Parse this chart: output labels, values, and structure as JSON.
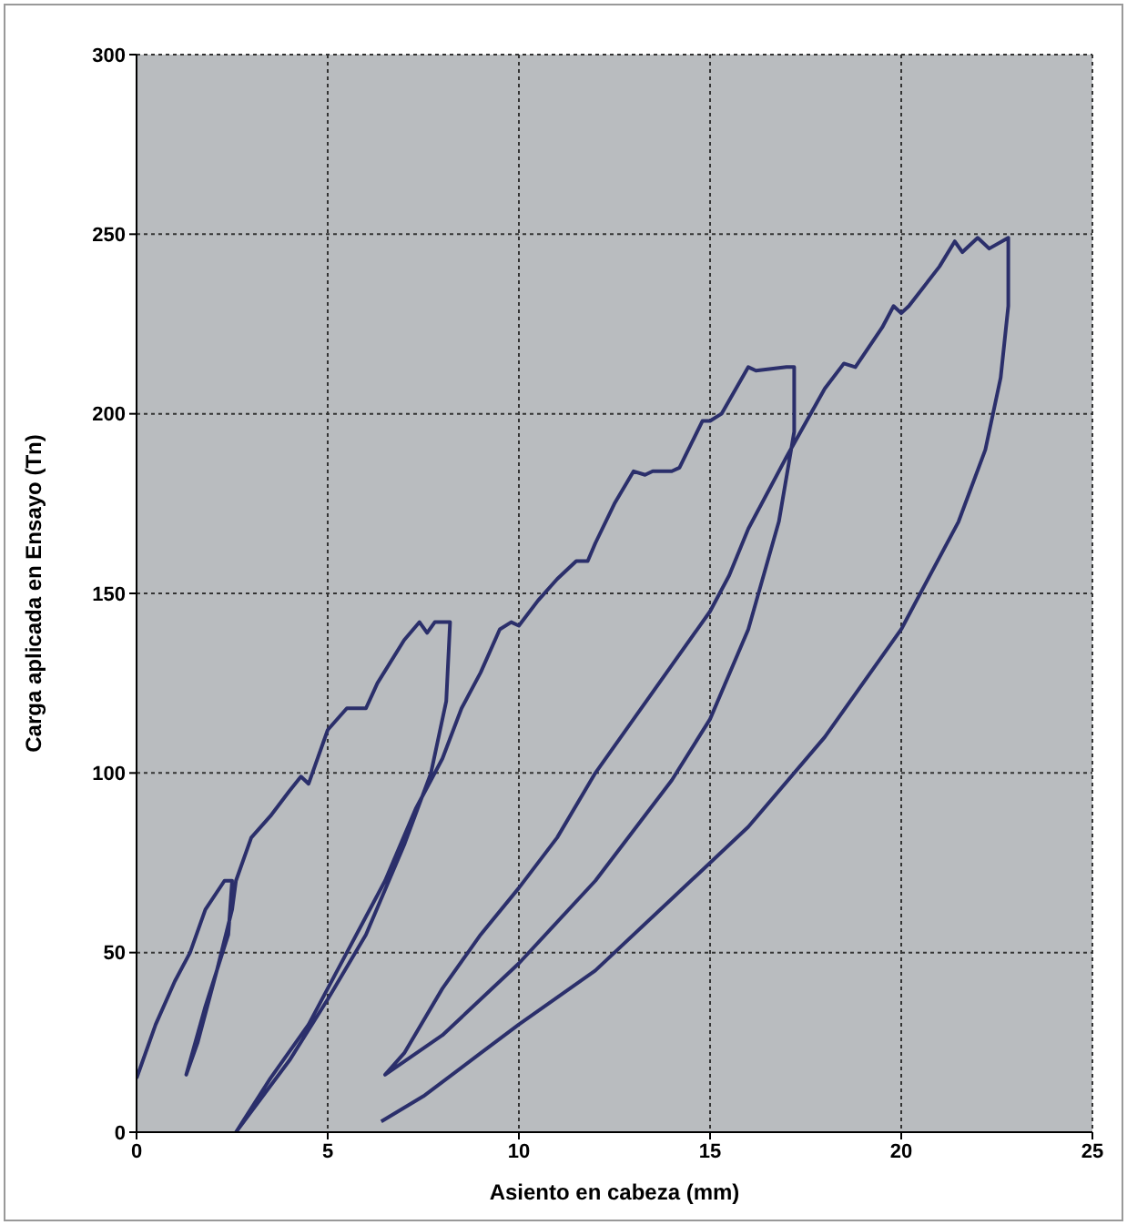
{
  "chart_data": {
    "type": "line",
    "xlabel": "Asiento en cabeza (mm)",
    "ylabel": "Carga aplicada en Ensayo (Tn)",
    "xlim": [
      0,
      25
    ],
    "xticks": [
      0,
      5,
      10,
      15,
      20,
      25
    ],
    "ylim": [
      0,
      300
    ],
    "yticks": [
      0,
      50,
      100,
      150,
      200,
      250,
      300
    ],
    "grid": true,
    "marker": "none",
    "line_style": "solid",
    "legend": false,
    "series": [
      {
        "color": "#2b2f6b",
        "x": [
          0,
          0.5,
          1,
          1.4,
          1.8,
          2.3,
          2.5,
          2.4,
          1.8,
          1.3,
          1.6,
          2.1,
          2.5,
          2.6,
          3,
          3.5,
          4,
          4.3,
          4.5,
          5,
          5.5,
          6,
          6.3,
          7,
          7.4,
          7.6,
          7.8,
          8.2,
          8.1,
          7.7,
          7,
          6,
          5,
          4,
          2.6,
          3.5,
          4.5,
          5.5,
          6.5,
          7.3,
          7.7,
          8,
          8.5,
          9,
          9.5,
          9.8,
          10,
          10.5,
          11,
          11.5,
          11.8,
          12,
          12.5,
          13,
          13.3,
          13.5,
          14,
          14.2,
          14.8,
          15,
          15.3,
          16,
          16.2,
          17,
          17.2,
          17.2,
          16.8,
          16,
          15,
          14,
          12,
          10,
          8,
          6.5,
          7,
          8,
          9,
          10,
          11,
          12,
          13,
          14,
          15,
          15.5,
          16,
          17,
          18,
          18.5,
          18.8,
          19.5,
          19.8,
          20,
          20.2,
          21,
          21.4,
          21.6,
          22,
          22.3,
          22.8,
          22.8,
          22.6,
          22.2,
          21.5,
          20,
          18,
          16,
          14,
          12,
          10,
          9,
          7.5,
          6.4
        ],
        "values": [
          15,
          30,
          42,
          50,
          62,
          70,
          70,
          55,
          35,
          16,
          25,
          45,
          62,
          70,
          82,
          88,
          95,
          99,
          97,
          112,
          118,
          118,
          125,
          137,
          142,
          139,
          142,
          142,
          120,
          100,
          80,
          55,
          37,
          20,
          0,
          15,
          30,
          50,
          70,
          90,
          98,
          104,
          118,
          128,
          140,
          142,
          141,
          148,
          154,
          159,
          159,
          164,
          175,
          184,
          183,
          184,
          184,
          185,
          198,
          198,
          200,
          213,
          212,
          213,
          213,
          195,
          170,
          140,
          115,
          98,
          70,
          47,
          27,
          16,
          22,
          40,
          55,
          68,
          82,
          100,
          115,
          130,
          145,
          155,
          168,
          188,
          207,
          214,
          213,
          224,
          230,
          228,
          230,
          241,
          248,
          245,
          249,
          246,
          249,
          230,
          210,
          190,
          170,
          140,
          110,
          85,
          65,
          45,
          30,
          22,
          10,
          3
        ]
      }
    ]
  }
}
